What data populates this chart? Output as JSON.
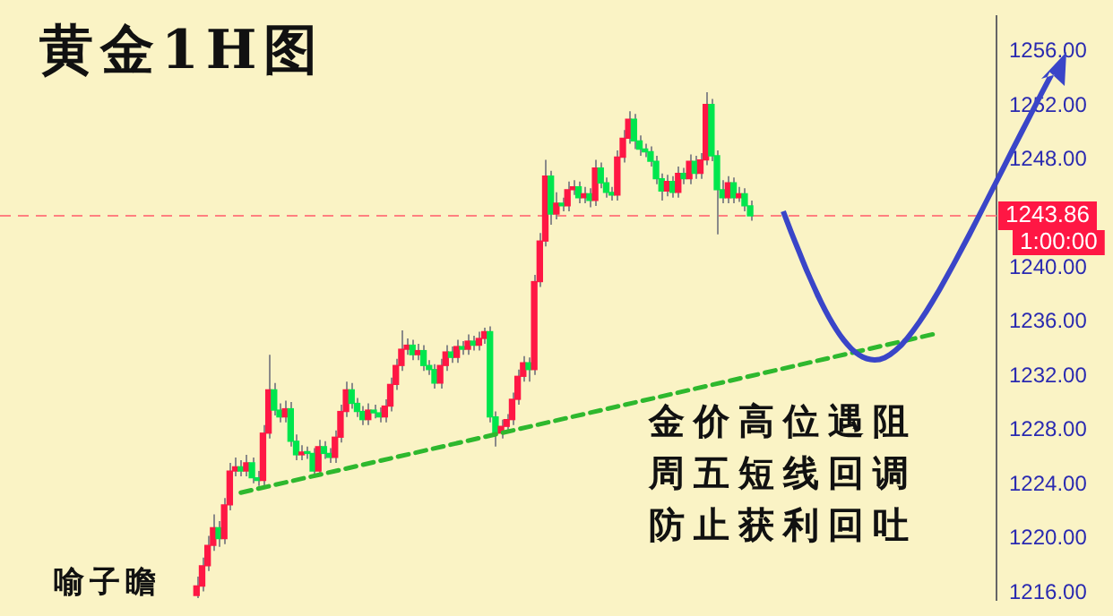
{
  "chart_data": {
    "type": "candlestick",
    "title": "黄金1H图",
    "categories": [
      null,
      null,
      null,
      null,
      null,
      null,
      null,
      null,
      null,
      null,
      null,
      null,
      null,
      null,
      null,
      null,
      null,
      null,
      null,
      null,
      null,
      null,
      null,
      null,
      null,
      null,
      null,
      null,
      null,
      null,
      null,
      null,
      null,
      null,
      null,
      null,
      null,
      null,
      null,
      null,
      null,
      null,
      null,
      null,
      null,
      null,
      null,
      null,
      null,
      null,
      null,
      null,
      null,
      null,
      null,
      null,
      null,
      null,
      null,
      null,
      null,
      null,
      null,
      null,
      null,
      null,
      null,
      null,
      null,
      null,
      null,
      null,
      null,
      null,
      null,
      null,
      null,
      null,
      null,
      null,
      null,
      null,
      null,
      null,
      null,
      null,
      null,
      null,
      null,
      null,
      null,
      null,
      null,
      null,
      null,
      null,
      null,
      null,
      null,
      null,
      null,
      null,
      null,
      null,
      null,
      null,
      null,
      null,
      null,
      null,
      null,
      null,
      null,
      null,
      null,
      null,
      null,
      null,
      null,
      null,
      null,
      null,
      null,
      null,
      null,
      null,
      null,
      null,
      null,
      null,
      null,
      null,
      null,
      null,
      null,
      null,
      null,
      null,
      null,
      null,
      null,
      null,
      null,
      null,
      null,
      null,
      null,
      null,
      null,
      null,
      null,
      null,
      null,
      null,
      null,
      null,
      null,
      null,
      null,
      null
    ],
    "ohlc": [
      null,
      null,
      null,
      null,
      null,
      null,
      null,
      null,
      null,
      null,
      null,
      null,
      null,
      null,
      null,
      null,
      null,
      null,
      null,
      null,
      null,
      null,
      null,
      null,
      null,
      [
        1215.8,
        1217.2,
        1215.6,
        1216.5
      ],
      [
        1216.5,
        1218.6,
        1216.1,
        1218
      ],
      [
        1218,
        1220.2,
        1217.6,
        1219.5
      ],
      [
        1219.5,
        1221.8,
        1219.1,
        1220.8
      ],
      [
        1220.8,
        1221.3,
        1219.4,
        1220
      ],
      [
        1220,
        1223,
        1219.6,
        1222.5
      ],
      [
        1222.5,
        1225.6,
        1222.1,
        1225
      ],
      [
        1225,
        1226,
        1224.6,
        1225.3
      ],
      [
        1225.3,
        1225.8,
        1224.6,
        1225
      ],
      [
        1225,
        1226.2,
        1224.6,
        1225.6
      ],
      [
        1225.6,
        1226,
        1224.1,
        1224.5
      ],
      [
        1224.5,
        1225,
        1223.9,
        1224.3
      ],
      [
        1224.3,
        1228.4,
        1223.9,
        1227.8
      ],
      [
        1227.8,
        1233.6,
        1227.4,
        1231
      ],
      [
        1231,
        1231.5,
        1229.1,
        1229.5
      ],
      [
        1229.5,
        1230,
        1228.6,
        1229
      ],
      [
        1229,
        1230.2,
        1228.6,
        1229.6
      ],
      [
        1229.6,
        1230.1,
        1226.8,
        1227.2
      ],
      [
        1227.2,
        1227.7,
        1225.8,
        1226.2
      ],
      [
        1226.2,
        1226.9,
        1225.8,
        1226.4
      ],
      [
        1226.4,
        1226.8,
        1225.9,
        1226.3
      ],
      [
        1226.3,
        1226.7,
        1224.6,
        1225
      ],
      [
        1225,
        1227.3,
        1224.6,
        1226.8
      ],
      [
        1226.8,
        1227.2,
        1225.9,
        1226.3
      ],
      [
        1226.3,
        1226.7,
        1225.6,
        1226
      ],
      [
        1226,
        1228,
        1225.6,
        1227.5
      ],
      [
        1227.5,
        1229.9,
        1227.1,
        1229.4
      ],
      [
        1229.4,
        1231.6,
        1229,
        1231
      ],
      [
        1231,
        1231.5,
        1229.6,
        1230
      ],
      [
        1230,
        1230.4,
        1229,
        1229.4
      ],
      [
        1229.4,
        1229.8,
        1228.4,
        1228.8
      ],
      [
        1228.8,
        1230,
        1228.4,
        1229.5
      ],
      [
        1229.5,
        1229.9,
        1228.9,
        1229.3
      ],
      [
        1229.3,
        1229.7,
        1228.6,
        1229
      ],
      [
        1229,
        1230.3,
        1228.6,
        1229.8
      ],
      [
        1229.8,
        1231.9,
        1229.4,
        1231.4
      ],
      [
        1231.4,
        1233.3,
        1231,
        1232.8
      ],
      [
        1232.8,
        1235.4,
        1232.4,
        1234
      ],
      [
        1234,
        1234.8,
        1233.6,
        1234.3
      ],
      [
        1234.3,
        1234.7,
        1233.2,
        1233.6
      ],
      [
        1233.6,
        1234.4,
        1233.2,
        1233.9
      ],
      [
        1233.9,
        1234.3,
        1232.4,
        1232.8
      ],
      [
        1232.8,
        1233.2,
        1232.1,
        1232.5
      ],
      [
        1232.5,
        1232.9,
        1231.1,
        1231.5
      ],
      [
        1231.5,
        1233.3,
        1231.1,
        1232.8
      ],
      [
        1232.8,
        1234.3,
        1232.4,
        1233.8
      ],
      [
        1233.8,
        1234.2,
        1233,
        1233.4
      ],
      [
        1233.4,
        1234.7,
        1233,
        1234.2
      ],
      [
        1234.2,
        1234.6,
        1233.6,
        1234
      ],
      [
        1234,
        1235.1,
        1233.6,
        1234.6
      ],
      [
        1234.6,
        1235,
        1233.9,
        1234.3
      ],
      [
        1234.3,
        1235.3,
        1233.9,
        1234.8
      ],
      [
        1234.8,
        1235.6,
        1234.4,
        1235.3
      ],
      [
        1235.3,
        1235.7,
        1228.6,
        1229
      ],
      [
        1229,
        1229.4,
        1226.8,
        1227.8
      ],
      [
        1227.8,
        1228.8,
        1227.4,
        1228.3
      ],
      [
        1228.3,
        1229.2,
        1227.9,
        1228.8
      ],
      [
        1228.8,
        1230.8,
        1228.4,
        1230.3
      ],
      [
        1230.3,
        1232.5,
        1229.9,
        1232
      ],
      [
        1232,
        1233.5,
        1231.6,
        1233
      ],
      [
        1233,
        1233.4,
        1231.6,
        1232.5
      ],
      [
        1232.5,
        1239.5,
        1232.1,
        1239
      ],
      [
        1239,
        1242.6,
        1238.6,
        1242
      ],
      [
        1242,
        1248,
        1241.6,
        1246.8
      ],
      [
        1246.8,
        1247.2,
        1243.2,
        1244
      ],
      [
        1244,
        1245.6,
        1243.6,
        1244.8
      ],
      [
        1244.8,
        1245.2,
        1244.2,
        1244.6
      ],
      [
        1244.6,
        1246.4,
        1244.2,
        1245.8
      ],
      [
        1245.8,
        1246.5,
        1245.4,
        1246
      ],
      [
        1246,
        1246.4,
        1244.8,
        1245.2
      ],
      [
        1245.2,
        1246,
        1244.8,
        1245.5
      ],
      [
        1245.5,
        1245.9,
        1244.5,
        1245
      ],
      [
        1245,
        1248,
        1244.6,
        1247.4
      ],
      [
        1247.4,
        1247.8,
        1245.9,
        1246.3
      ],
      [
        1246.3,
        1246.7,
        1245.2,
        1245.6
      ],
      [
        1245.6,
        1246,
        1245,
        1245.4
      ],
      [
        1245.4,
        1248.7,
        1245,
        1248.2
      ],
      [
        1248.2,
        1250.2,
        1247.8,
        1249.6
      ],
      [
        1249.6,
        1251.6,
        1249.2,
        1251
      ],
      [
        1251,
        1251.4,
        1248.8,
        1249.4
      ],
      [
        1249.4,
        1249.8,
        1248.3,
        1248.8
      ],
      [
        1248.8,
        1249.2,
        1248.2,
        1248.6
      ],
      [
        1248.6,
        1249,
        1247.5,
        1247.9
      ],
      [
        1247.9,
        1248.3,
        1246.2,
        1246.6
      ],
      [
        1246.6,
        1247,
        1245,
        1245.7
      ],
      [
        1245.7,
        1246.9,
        1245.3,
        1246.4
      ],
      [
        1246.4,
        1246.8,
        1245.2,
        1245.6
      ],
      [
        1245.6,
        1247.5,
        1245.2,
        1247
      ],
      [
        1247,
        1247.4,
        1246.2,
        1246.6
      ],
      [
        1246.6,
        1248.4,
        1246.2,
        1247.9
      ],
      [
        1247.9,
        1248.3,
        1246.6,
        1247
      ],
      [
        1247,
        1248.5,
        1246.6,
        1248
      ],
      [
        1248,
        1253,
        1247.6,
        1252.1
      ],
      [
        1252.1,
        1252.5,
        1247.9,
        1248.3
      ],
      [
        1248.3,
        1248.7,
        1242.5,
        1245.8
      ],
      [
        1245.8,
        1246.5,
        1244.8,
        1245.2
      ],
      [
        1245.2,
        1246.8,
        1244.8,
        1246.3
      ],
      [
        1246.3,
        1246.7,
        1244.8,
        1245.2
      ],
      [
        1245.2,
        1246,
        1244.9,
        1245.5
      ],
      [
        1245.5,
        1245.9,
        1244.2,
        1244.6
      ],
      [
        1244.6,
        1245,
        1243.5,
        1243.86
      ],
      null,
      null,
      null,
      null,
      null,
      null,
      null,
      null,
      null,
      null,
      null,
      null,
      null,
      null,
      null,
      null,
      null,
      null,
      null,
      null,
      null,
      null,
      null,
      null,
      null,
      null,
      null,
      null,
      null,
      null,
      null,
      null,
      null,
      null
    ],
    "colors": [
      null,
      null,
      null,
      null,
      null,
      null,
      null,
      null,
      null,
      null,
      null,
      null,
      null,
      null,
      null,
      null,
      null,
      null,
      null,
      null,
      null,
      null,
      null,
      null,
      null,
      "#ff1744",
      "#ff1744",
      "#ff1744",
      "#ff1744",
      "#00e64d",
      "#ff1744",
      "#ff1744",
      "#ff1744",
      "#00e64d",
      "#ff1744",
      "#00e64d",
      "#00e64d",
      "#ff1744",
      "#ff1744",
      "#00e64d",
      "#00e64d",
      "#ff1744",
      "#00e64d",
      "#00e64d",
      "#ff1744",
      "#00e64d",
      "#00e64d",
      "#ff1744",
      "#00e64d",
      "#00e64d",
      "#ff1744",
      "#ff1744",
      "#ff1744",
      "#00e64d",
      "#00e64d",
      "#00e64d",
      "#ff1744",
      "#00e64d",
      "#00e64d",
      "#ff1744",
      "#ff1744",
      "#ff1744",
      "#ff1744",
      "#ff1744",
      "#00e64d",
      "#ff1744",
      "#00e64d",
      "#00e64d",
      "#00e64d",
      "#ff1744",
      "#ff1744",
      "#00e64d",
      "#ff1744",
      "#00e64d",
      "#ff1744",
      "#00e64d",
      "#ff1744",
      "#ff1744",
      "#00e64d",
      "#00e64d",
      "#ff1744",
      "#ff1744",
      "#ff1744",
      "#ff1744",
      "#ff1744",
      "#00e64d",
      "#ff1744",
      "#ff1744",
      "#ff1744",
      "#00e64d",
      "#ff1744",
      "#00e64d",
      "#ff1744",
      "#ff1744",
      "#00e64d",
      "#ff1744",
      "#00e64d",
      "#ff1744",
      "#00e64d",
      "#00e64d",
      "#00e64d",
      "#ff1744",
      "#ff1744",
      "#ff1744",
      "#00e64d",
      "#00e64d",
      "#00e64d",
      "#00e64d",
      "#00e64d",
      "#00e64d",
      "#ff1744",
      "#00e64d",
      "#ff1744",
      "#00e64d",
      "#ff1744",
      "#00e64d",
      "#ff1744",
      "#ff1744",
      "#00e64d",
      "#00e64d",
      "#00e64d",
      "#ff1744",
      "#00e64d",
      "#ff1744",
      "#00e64d",
      "#00e64d",
      null,
      null,
      null,
      null,
      null,
      null,
      null,
      null,
      null,
      null,
      null,
      null,
      null,
      null,
      null,
      null,
      null,
      null,
      null,
      null,
      null,
      null,
      null,
      null,
      null,
      null,
      null,
      null,
      null,
      null,
      null,
      null,
      null,
      null
    ],
    "series": [
      {
        "type": "line",
        "color": "#2eb82e",
        "line_style": "dashed",
        "values": [
          null,
          null,
          null,
          null,
          null,
          null,
          null,
          null,
          null,
          null,
          null,
          null,
          null,
          null,
          null,
          null,
          null,
          null,
          null,
          null,
          null,
          null,
          null,
          null,
          null,
          null,
          null,
          null,
          null,
          null,
          null,
          null,
          null,
          1223.4,
          null,
          null,
          null,
          null,
          null,
          null,
          null,
          null,
          null,
          null,
          null,
          null,
          null,
          null,
          null,
          null,
          null,
          null,
          null,
          null,
          null,
          null,
          null,
          null,
          null,
          null,
          null,
          null,
          null,
          null,
          null,
          null,
          null,
          null,
          null,
          null,
          null,
          null,
          null,
          null,
          null,
          null,
          null,
          null,
          null,
          null,
          null,
          null,
          null,
          null,
          null,
          null,
          null,
          null,
          null,
          null,
          null,
          null,
          null,
          null,
          null,
          null,
          null,
          null,
          null,
          null,
          null,
          null,
          null,
          null,
          null,
          null,
          null,
          null,
          null,
          null,
          null,
          null,
          null,
          null,
          null,
          null,
          null,
          null,
          null,
          null,
          null,
          null,
          null,
          null,
          null,
          null,
          null,
          null,
          null,
          null,
          null,
          null,
          null,
          null,
          null,
          null,
          null,
          null,
          null,
          null,
          null,
          null,
          null,
          null,
          null,
          null,
          null,
          null,
          null,
          null,
          null,
          null,
          null,
          null,
          null,
          null,
          null,
          null,
          null,
          1235.2
        ]
      }
    ],
    "ylim": [
      1215.5,
      1258.6
    ],
    "yticks": [
      {
        "value": 1216,
        "label": "1216.00"
      },
      {
        "value": 1220,
        "label": "1220.00"
      },
      {
        "value": 1224,
        "label": "1224.00"
      },
      {
        "value": 1228,
        "label": "1228.00"
      },
      {
        "value": 1232,
        "label": "1232.00"
      },
      {
        "value": 1236,
        "label": "1236.00"
      },
      {
        "value": 1240,
        "label": "1240.00"
      },
      {
        "value": 1248,
        "label": "1248.00"
      },
      {
        "value": 1252,
        "label": "1252.00"
      },
      {
        "value": 1256,
        "label": "1256.00"
      }
    ],
    "ref_lines": [
      {
        "axis": "y",
        "value": 1243.86,
        "label": "1243.86",
        "color": "#ff8080",
        "line_style": "dashed"
      }
    ],
    "annotations": [
      "金价高位遇阻",
      "周五短线回调",
      "防止获利回吐",
      "喻子瞻",
      "1:00:00"
    ],
    "legend": false,
    "grid": false,
    "tick_labels": "y",
    "marker": "none"
  }
}
